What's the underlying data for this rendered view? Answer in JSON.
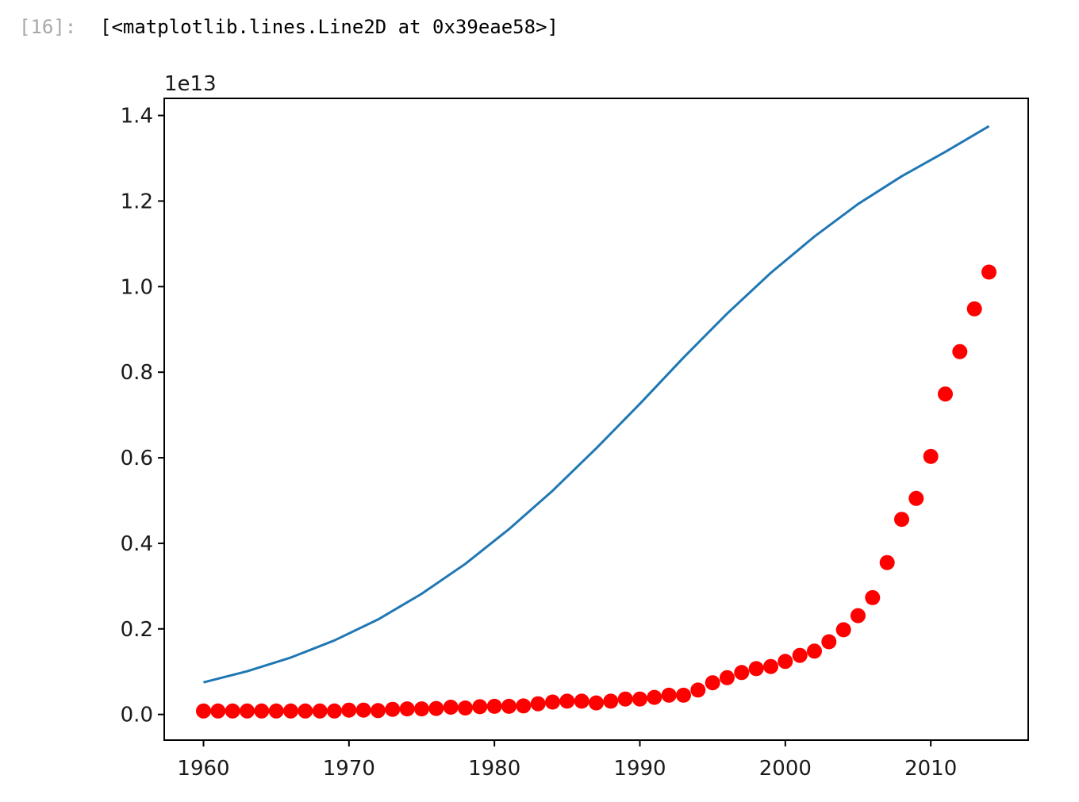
{
  "cell": {
    "prompt": "[16]:",
    "output_text": "[<matplotlib.lines.Line2D at 0x39eae58>]"
  },
  "colors": {
    "line": "#1f77b4",
    "markers": "#ff0000",
    "axes": "#000000",
    "prompt": "#a8a8a8"
  },
  "chart_data": {
    "type": "line",
    "title": "",
    "xlabel": "",
    "ylabel": "",
    "y_offset_label": "1e13",
    "xlim": [
      1957.3,
      2016.7
    ],
    "ylim": [
      -0.06,
      1.44
    ],
    "y_unit_scale": "1e13",
    "x_ticks": [
      1960,
      1970,
      1980,
      1990,
      2000,
      2010
    ],
    "x_tick_labels": [
      "1960",
      "1970",
      "1980",
      "1990",
      "2000",
      "2010"
    ],
    "y_ticks": [
      0.0,
      0.2,
      0.4,
      0.6,
      0.8,
      1.0,
      1.2,
      1.4
    ],
    "y_tick_labels": [
      "0.0",
      "0.2",
      "0.4",
      "0.6",
      "0.8",
      "1.0",
      "1.2",
      "1.4"
    ],
    "grid": false,
    "legend": "none",
    "series": [
      {
        "style": "line",
        "color": "#1f77b4",
        "x": [
          1960,
          1963,
          1966,
          1969,
          1972,
          1975,
          1978,
          1981,
          1984,
          1987,
          1990,
          1993,
          1996,
          1999,
          2002,
          2005,
          2008,
          2011,
          2014
        ],
        "y": [
          0.075,
          0.101,
          0.133,
          0.173,
          0.222,
          0.282,
          0.352,
          0.433,
          0.523,
          0.622,
          0.726,
          0.834,
          0.937,
          1.032,
          1.117,
          1.193,
          1.258,
          1.315,
          1.375
        ]
      },
      {
        "style": "markers",
        "color": "#ff0000",
        "x": [
          1960,
          1961,
          1962,
          1963,
          1964,
          1965,
          1966,
          1967,
          1968,
          1969,
          1970,
          1971,
          1972,
          1973,
          1974,
          1975,
          1976,
          1977,
          1978,
          1979,
          1980,
          1981,
          1982,
          1983,
          1984,
          1985,
          1986,
          1987,
          1988,
          1989,
          1990,
          1991,
          1992,
          1993,
          1994,
          1995,
          1996,
          1997,
          1998,
          1999,
          2000,
          2001,
          2002,
          2003,
          2004,
          2005,
          2006,
          2007,
          2008,
          2009,
          2010,
          2011,
          2012,
          2013,
          2014
        ],
        "y": [
          0.008,
          0.008,
          0.008,
          0.008,
          0.008,
          0.008,
          0.008,
          0.008,
          0.008,
          0.008,
          0.01,
          0.01,
          0.009,
          0.012,
          0.013,
          0.013,
          0.014,
          0.017,
          0.015,
          0.018,
          0.019,
          0.019,
          0.02,
          0.025,
          0.029,
          0.031,
          0.031,
          0.027,
          0.031,
          0.036,
          0.036,
          0.04,
          0.045,
          0.045,
          0.057,
          0.074,
          0.086,
          0.098,
          0.107,
          0.112,
          0.124,
          0.138,
          0.148,
          0.17,
          0.198,
          0.231,
          0.273,
          0.355,
          0.456,
          0.505,
          0.603,
          0.749,
          0.848,
          0.948,
          1.034
        ]
      }
    ]
  }
}
